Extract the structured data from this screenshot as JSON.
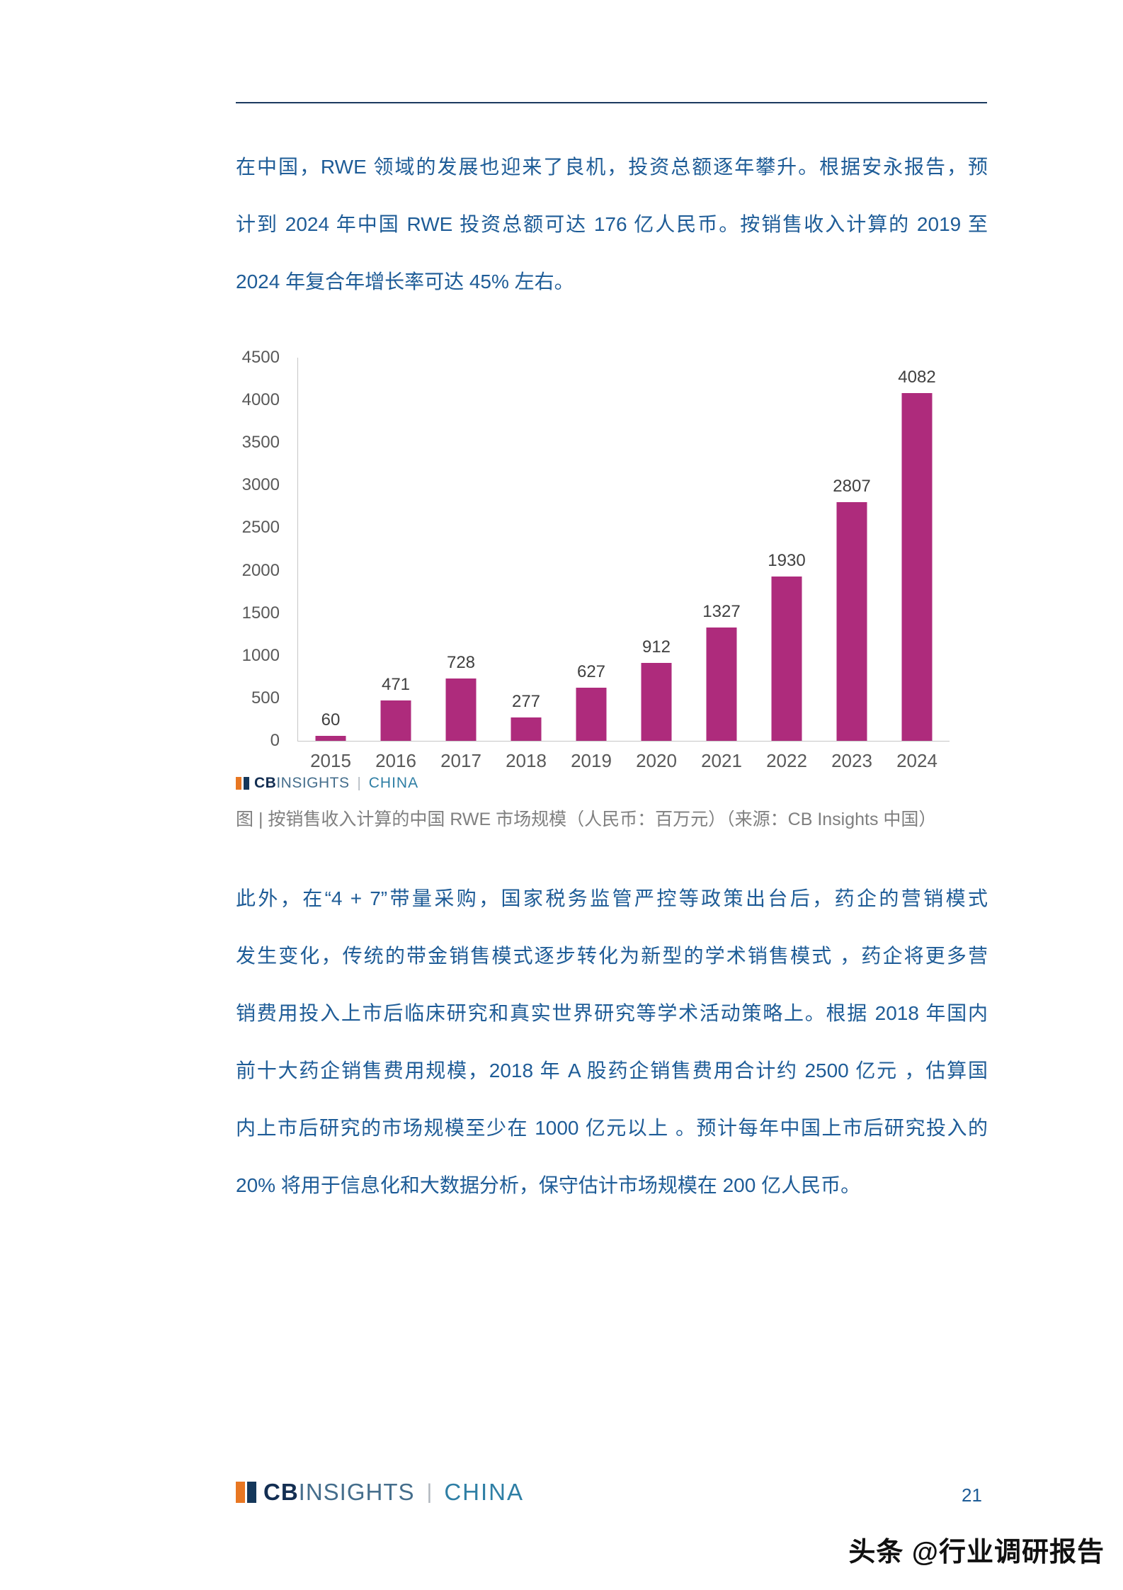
{
  "intro_paragraph": {
    "lines": [
      "在中国，RWE 领域的发展也迎来了良机，投资总额逐年攀升。根据安永报告，预",
      "计到 2024 年中国 RWE 投资总额可达 176 亿人民币。按销售收入计算的 2019 至",
      "2024 年复合年增长率可达 45% 左右。"
    ]
  },
  "chart_data": {
    "type": "bar",
    "title": "按销售收入计算的中国 RWE 市场规模",
    "categories": [
      "2015",
      "2016",
      "2017",
      "2018",
      "2019",
      "2020",
      "2021",
      "2022",
      "2023",
      "2024"
    ],
    "values": [
      60,
      471,
      728,
      277,
      627,
      912,
      1327,
      1930,
      2807,
      4082
    ],
    "xlabel": "",
    "ylabel": "",
    "ylim": [
      0,
      4500
    ],
    "ytick_step": 500,
    "unit": "人民币：百万元",
    "bar_color": "#ae2b7c",
    "grid": false,
    "legend": "none"
  },
  "chart_footer": {
    "brand_cb": "CB",
    "brand_insights": "INSIGHTS",
    "separator": "|",
    "brand_region": "CHINA",
    "caption": "图 | 按销售收入计算的中国 RWE 市场规模（人民币：百万元）（来源：CB Insights 中国）"
  },
  "body_paragraph": {
    "lines": [
      "此外，在“4 + 7”带量采购，国家税务监管严控等政策出台后，药企的营销模式",
      "发生变化，传统的带金销售模式逐步转化为新型的学术销售模式 ，药企将更多营",
      "销费用投入上市后临床研究和真实世界研究等学术活动策略上。根据 2018 年国内",
      "前十大药企销售费用规模，2018 年 A 股药企销售费用合计约 2500 亿元 ，估算国",
      "内上市后研究的市场规模至少在 1000 亿元以上 。预计每年中国上市后研究投入的",
      "20% 将用于信息化和大数据分析，保守估计市场规模在 200 亿人民币。"
    ]
  },
  "footer": {
    "brand_cb": "CB",
    "brand_insights": "INSIGHTS",
    "separator": "|",
    "brand_region": "CHINA",
    "page_number": "21"
  },
  "watermark": "头条 @行业调研报告"
}
